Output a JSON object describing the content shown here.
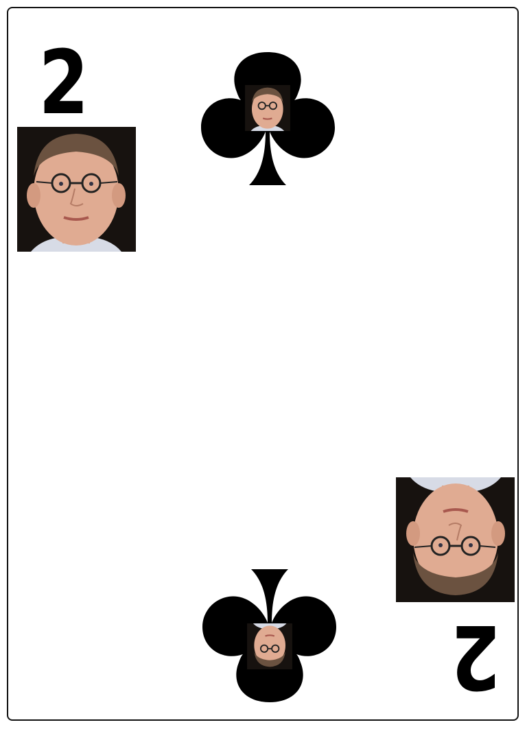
{
  "card": {
    "rank": "2",
    "suit": "clubs",
    "suit_icon": "club-icon",
    "colors": {
      "ink": "#000000",
      "paper": "#ffffff",
      "border": "#111111"
    }
  }
}
